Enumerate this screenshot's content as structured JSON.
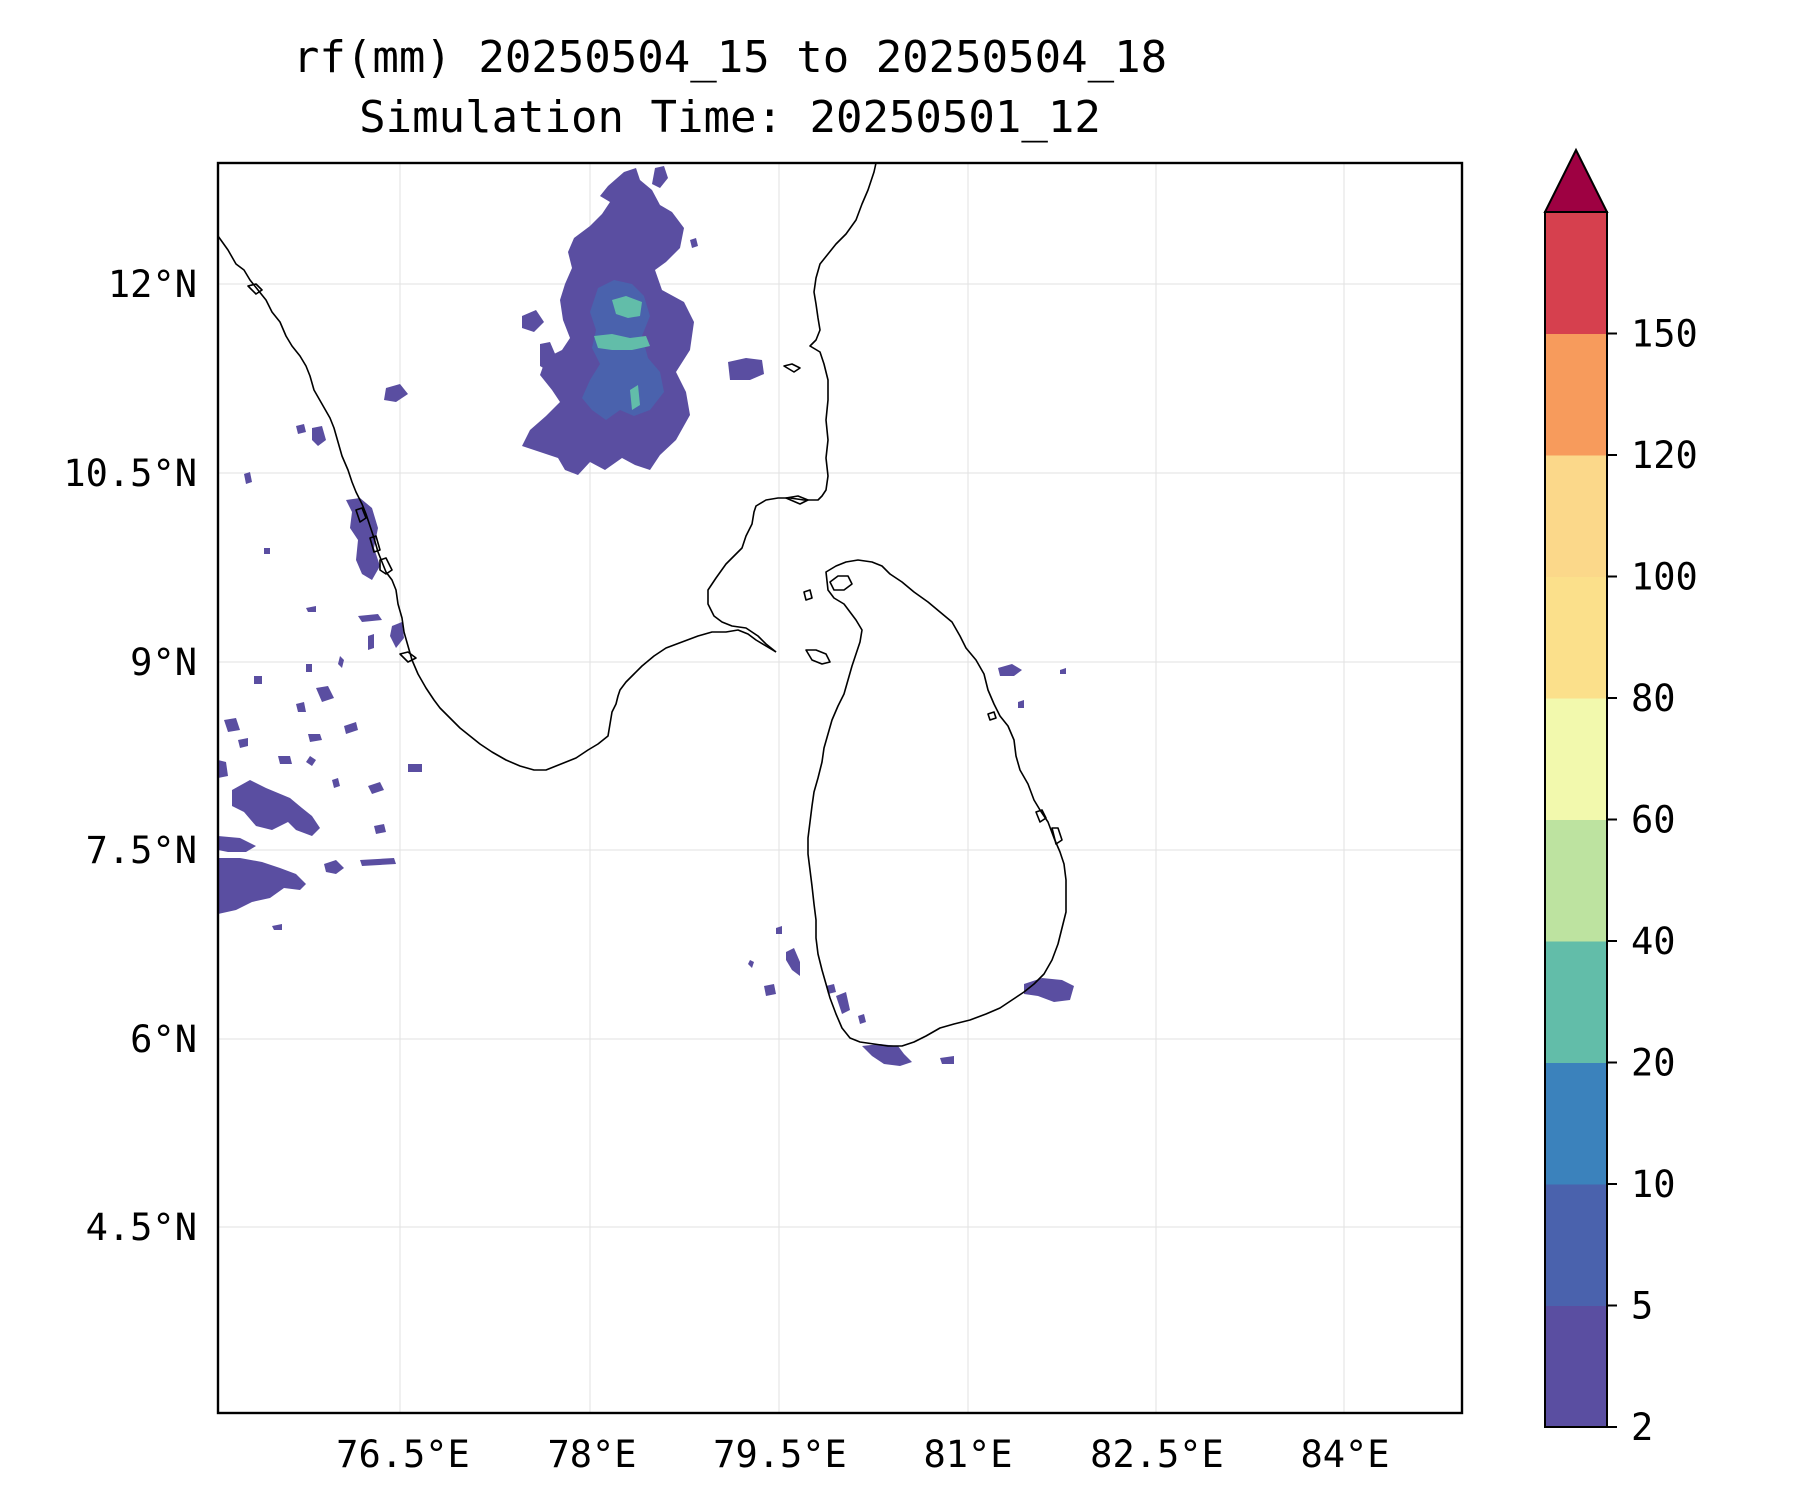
{
  "title": {
    "line1": "rf(mm) 20250504_15 to 20250504_18",
    "line2": "Simulation Time: 20250501_12"
  },
  "map": {
    "lon_labels": [
      "76.5°E",
      "78°E",
      "79.5°E",
      "81°E",
      "82.5°E",
      "84°E"
    ],
    "lat_labels": [
      "12°N",
      "10.5°N",
      "9°N",
      "7.5°N",
      "6°N",
      "4.5°N"
    ]
  },
  "colorbar": {
    "levels": [
      "2",
      "5",
      "10",
      "20",
      "40",
      "60",
      "80",
      "100",
      "120",
      "150"
    ],
    "colors": [
      "#5a4ea1",
      "#4a62ad",
      "#3b82bc",
      "#62bda9",
      "#bde3a0",
      "#f2f9ad",
      "#fbe08b",
      "#fbd88a",
      "#f79b5c",
      "#d6404e"
    ],
    "extend_color": "#9e0142"
  },
  "colors": {
    "rain_light": "#5a4ea1",
    "rain_medium": "#4a62ad",
    "rain_heavy": "#62bda9",
    "coastline": "#000000"
  }
}
